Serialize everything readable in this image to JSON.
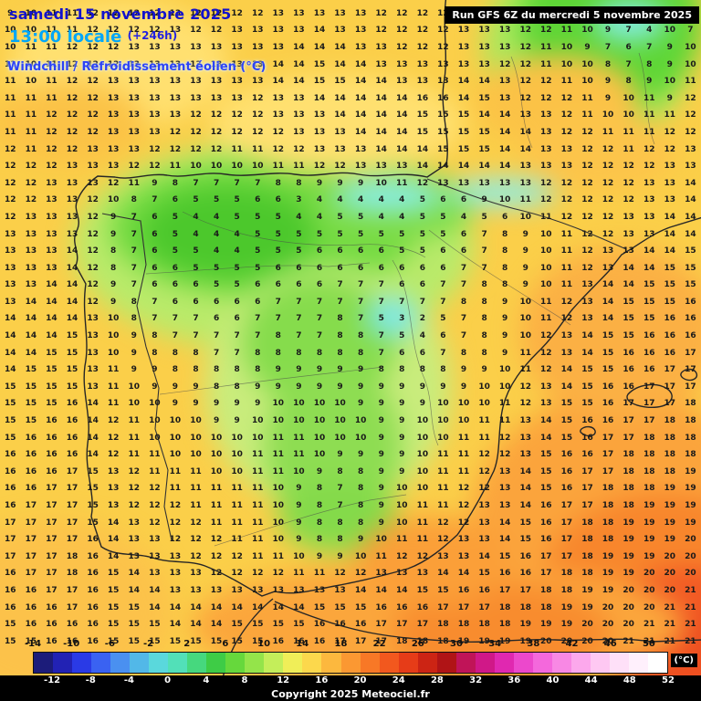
{
  "header": {
    "date_line": "samedi 15 novembre 2025",
    "time_line": "13:00 locale",
    "offset": "(+246h)",
    "param_line": "Windchill / Refroidissement éolien (°C)",
    "run_info": "Run GFS 6Z du mercredi 5 novembre 2025"
  },
  "footer": {
    "copyright": "Copyright 2025 Meteociel.fr",
    "unit_label": "(°C)"
  },
  "colorbar": {
    "min": -14,
    "max": 52,
    "step": 2,
    "top_labels": [
      -14,
      -10,
      -6,
      -2,
      2,
      6,
      10,
      14,
      18,
      22,
      26,
      30,
      34,
      38,
      42,
      46,
      50
    ],
    "bottom_labels": [
      -12,
      -8,
      -4,
      0,
      4,
      8,
      12,
      16,
      20,
      24,
      28,
      32,
      36,
      40,
      44,
      48,
      52
    ],
    "colors": [
      "#1c1c7a",
      "#2222b4",
      "#2a3ae6",
      "#3a62f2",
      "#4a90f0",
      "#52b8e8",
      "#5ad8dc",
      "#52e0b8",
      "#46d87e",
      "#3ecc46",
      "#66d83c",
      "#94e44a",
      "#c4ee5a",
      "#f0ee58",
      "#fcd84c",
      "#fcb83e",
      "#fb9832",
      "#f87826",
      "#f2581e",
      "#e63c18",
      "#cc2414",
      "#b01416",
      "#c01458",
      "#d01888",
      "#e028b0",
      "#ec48cc",
      "#f468dc",
      "#f888e4",
      "#fca8ec",
      "#fec8f2",
      "#fee0f8",
      "#fff0fc",
      "#ffffff"
    ]
  },
  "map_colors": {
    "base_yellow": "#fbcf49",
    "light_yellow": "#ffe070",
    "pale_green": "#c9ec7c",
    "green": "#72da40",
    "dark_green": "#4cc82c",
    "cyan": "#8aeeea",
    "orange": "#fba43c",
    "deep_orange": "#f8862c",
    "red_orange": "#f25a24"
  },
  "grid": {
    "rows": [
      "9 10 11 11 12 12 12 12 13 12 12 12 12 13 13 13 13 13 12 12 12 12 12 13 13 13 12 11 10 10 9 10 11 13",
      "10 10 11 11 12 12 12 12 13 12 12 13 13 13 13 14 13 13 12 12 12 12 13 13 13 12 12 11 10 9 7 4 10 7",
      "10 11 11 12 12 12 13 13 13 13 13 13 13 13 14 14 14 13 13 12 12 12 13 13 13 12 11 10 9 7 6 7 9 10",
      "11 10 11 12 12 12 13 13 13 13 13 13 13 14 14 15 14 14 13 13 13 13 13 13 12 12 11 10 10 8 7 8 9 10",
      "11 10 11 12 12 13 13 13 13 13 13 13 13 14 14 15 15 14 14 13 13 13 14 14 13 12 12 11 10 9 8 9 10 11",
      "11 11 11 12 12 13 13 13 13 13 13 13 12 13 13 14 14 14 14 14 16 16 14 15 13 12 12 12 11 9 10 11 9 12",
      "11 11 12 12 12 13 13 13 13 12 12 12 12 13 13 13 14 14 14 14 15 15 15 14 14 13 13 12 11 10 10 11 11 12",
      "11 11 12 12 12 13 13 13 12 12 12 12 12 12 13 13 13 14 14 14 15 15 15 15 14 14 13 12 12 11 11 11 12 12",
      "12 11 12 12 13 13 13 12 12 12 12 11 11 12 12 13 13 13 14 14 14 15 15 15 14 14 13 13 12 12 11 12 12 13",
      "12 12 12 13 13 13 12 12 11 10 10 10 10 11 11 12 12 13 13 13 14 14 14 14 14 13 13 13 12 12 12 12 13 13",
      "12 12 13 13 13 12 11 9 8 7 7 7 7 8 8 9 9 9 10 11 12 13 13 13 13 13 12 12 12 12 12 13 13 14",
      "12 12 13 13 12 10 8 7 6 5 5 5 6 6 3 4 4 4 4 4 5 6 6 9 10 11 12 12 12 12 12 13 13 14",
      "12 13 13 13 12 9 7 6 5 4 4 5 5 5 4 4 5 5 4 4 5 5 4 5 6 10 11 12 12 12 13 13 14 14",
      "13 13 13 13 12 9 7 6 5 4 4 4 5 5 5 5 5 5 5 5 5 5 6 7 8 9 10 11 12 12 13 13 14 14",
      "13 13 13 14 12 8 7 6 5 5 4 4 5 5 5 6 6 6 6 5 5 6 6 7 8 9 10 11 12 13 13 14 14 15",
      "13 13 13 14 12 8 7 6 6 5 5 5 5 6 6 6 6 6 6 6 6 6 7 7 8 9 10 11 12 13 14 14 15 15",
      "13 13 14 14 12 9 7 6 6 6 5 5 6 6 6 6 7 7 7 6 6 7 7 8 8 9 10 11 13 14 14 15 15 15",
      "13 14 14 14 12 9 8 7 6 6 6 6 6 7 7 7 7 7 7 7 7 7 8 8 9 10 11 12 13 14 15 15 15 16",
      "14 14 14 14 13 10 8 7 7 7 6 6 7 7 7 7 8 7 5 3 2 5 7 8 9 10 11 12 13 14 15 15 16 16",
      "14 14 14 15 13 10 9 8 7 7 7 7 7 8 7 7 8 8 7 5 4 6 7 8 9 10 12 13 14 15 15 16 16 16",
      "14 14 15 15 13 10 9 8 8 8 7 7 8 8 8 8 8 8 7 6 6 7 8 8 9 11 12 13 14 15 16 16 16 17",
      "14 15 15 15 13 11 9 9 8 8 8 8 8 9 9 9 9 9 8 8 8 8 9 9 10 11 12 14 15 15 16 16 17 17",
      "15 15 15 15 13 11 10 9 9 9 8 8 9 9 9 9 9 9 9 9 9 9 9 10 10 12 13 14 15 16 16 17 17 17",
      "15 15 15 16 14 11 10 10 9 9 9 9 9 10 10 10 10 9 9 9 9 10 10 10 11 12 13 15 15 16 17 17 17 18",
      "15 15 16 16 14 12 11 10 10 10 9 9 10 10 10 10 10 10 9 9 10 10 10 11 11 13 14 15 16 16 17 17 18 18",
      "15 16 16 16 14 12 11 10 10 10 10 10 10 11 11 10 10 10 9 9 10 10 11 11 12 13 14 15 16 17 17 18 18 18",
      "16 16 16 16 14 12 11 11 10 10 10 10 11 11 11 10 9 9 9 9 10 11 11 12 12 13 15 16 16 17 18 18 18 18",
      "16 16 16 17 15 13 12 11 11 11 10 10 11 11 10 9 8 8 9 9 10 11 11 12 13 14 15 16 17 17 18 18 18 19",
      "16 16 17 17 15 13 12 12 11 11 11 11 11 10 9 8 7 8 9 10 10 11 12 12 13 14 15 16 17 18 18 18 19 19",
      "16 17 17 17 15 13 12 12 12 11 11 11 11 10 9 8 7 8 9 10 11 11 12 13 13 14 16 17 17 18 18 19 19 19",
      "17 17 17 17 15 14 13 12 12 12 11 11 11 10 9 8 8 8 9 10 11 12 12 13 14 15 16 17 18 18 19 19 19 19",
      "17 17 17 17 16 14 13 13 12 12 12 11 11 10 9 8 8 9 10 11 11 12 13 13 14 15 16 17 18 18 19 19 19 20",
      "17 17 17 18 16 14 13 13 13 12 12 12 11 11 10 9 9 10 11 12 12 13 13 14 15 16 17 17 18 19 19 19 20 20",
      "16 17 17 18 16 15 14 13 13 13 12 12 12 12 11 11 12 12 13 13 13 14 14 15 16 16 17 18 18 19 19 20 20 20",
      "16 16 17 17 16 15 14 14 13 13 13 13 13 13 13 13 13 14 14 14 15 15 16 16 17 17 18 18 19 19 20 20 20 21",
      "16 16 16 17 16 15 15 14 14 14 14 14 14 14 14 15 15 15 16 16 16 17 17 17 18 18 18 19 19 20 20 20 21 21",
      "15 16 16 16 16 15 15 15 14 14 14 15 15 15 15 16 16 16 17 17 17 18 18 18 18 19 19 19 20 20 20 21 21 21",
      "15 15 16 16 16 15 15 15 15 15 15 15 15 16 16 16 17 17 17 18 18 18 19 19 19 19 20 20 20 20 21 21 21 21"
    ]
  }
}
